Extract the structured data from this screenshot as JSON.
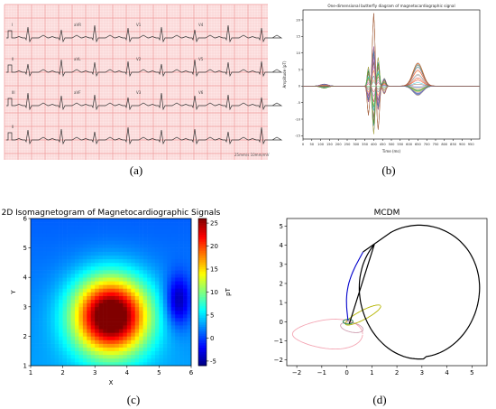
{
  "captions": {
    "a": "(a)",
    "b": "(b)",
    "c": "(c)",
    "d": "(d)"
  },
  "panel_a": {
    "leads": [
      "I",
      "aVR",
      "V1",
      "V4",
      "II",
      "aVL",
      "V2",
      "V5",
      "III",
      "aVF",
      "V3",
      "V6",
      "II"
    ],
    "footer": "25mm/s 10mm/mV",
    "colors": {
      "grid_minor": "#f7c8c8",
      "grid_major": "#ef9a9a",
      "paper": "#fde6e6",
      "trace": "#333333"
    }
  },
  "chart_data": [
    {
      "type": "line",
      "title": "One-dimensional butterfly diagram of magnetocardiographic signal",
      "xlabel": "Time (ms)",
      "ylabel": "Amplitude (pT)",
      "xlim": [
        0,
        1000
      ],
      "ylim": [
        -16,
        23
      ],
      "xticks": [
        0,
        50,
        100,
        150,
        200,
        250,
        300,
        350,
        400,
        450,
        500,
        550,
        600,
        650,
        700,
        750,
        800,
        850,
        900,
        950
      ],
      "yticks": [
        -15,
        -10,
        -5,
        0,
        5,
        10,
        15,
        20
      ],
      "series_count": 36,
      "peak_max": 22,
      "peak_min": -14.5,
      "r_peak_ms": 400,
      "t_wave_ms": 650,
      "t_wave_max": 7
    },
    {
      "type": "heatmap",
      "title": "2D Isomagnetogram of Magnetocardiographic Signals",
      "xlabel": "X",
      "ylabel": "Y",
      "xlim": [
        1,
        6
      ],
      "ylim": [
        1,
        6
      ],
      "xticks": [
        1,
        2,
        3,
        4,
        5,
        6
      ],
      "yticks": [
        1,
        2,
        3,
        4,
        5,
        6
      ],
      "colorbar_label": "pT",
      "colorbar_range": [
        -6,
        26
      ],
      "colorbar_ticks": [
        -5,
        0,
        5,
        10,
        15,
        20,
        25
      ],
      "max_location": [
        3.5,
        2.7
      ],
      "max_value": 25,
      "min_location": [
        5.6,
        3.2
      ],
      "min_value": -6
    },
    {
      "type": "line",
      "title": "MCDM",
      "xlim": [
        -2.4,
        5.6
      ],
      "ylim": [
        -2.3,
        5.4
      ],
      "xticks": [
        -2,
        -1,
        0,
        1,
        2,
        3,
        4,
        5
      ],
      "yticks": [
        -2,
        -1,
        0,
        1,
        2,
        3,
        4,
        5
      ],
      "series_colors": {
        "large_loop": "#000000",
        "upstroke": "#0000cc",
        "t_loop": "#b5b500",
        "p_loop": "#f4a6b4",
        "small_loop": "#2e8b57"
      }
    }
  ]
}
